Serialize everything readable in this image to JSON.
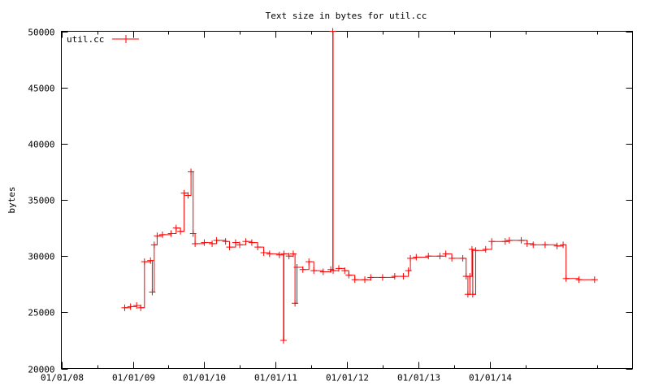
{
  "chart_data": {
    "type": "line",
    "title": "Text size in bytes for util.cc",
    "xlabel": "",
    "ylabel": "bytes",
    "ylim": [
      20000,
      50000
    ],
    "yticks": [
      20000,
      25000,
      30000,
      35000,
      40000,
      45000,
      50000
    ],
    "xlim": [
      "2008-01-01",
      "2015-12-31"
    ],
    "xticks": [
      {
        "value": "2008-01-01",
        "label": "01/01/08"
      },
      {
        "value": "2009-01-01",
        "label": "01/01/09"
      },
      {
        "value": "2010-01-01",
        "label": "01/01/10"
      },
      {
        "value": "2011-01-01",
        "label": "01/01/11"
      },
      {
        "value": "2012-01-01",
        "label": "01/01/12"
      },
      {
        "value": "2013-01-01",
        "label": "01/01/13"
      },
      {
        "value": "2014-01-01",
        "label": "01/01/14"
      }
    ],
    "legend_position": "top-left",
    "grid": false,
    "series": [
      {
        "name": "util.cc",
        "color": "#ff0000",
        "marker": "plus",
        "points": [
          [
            "2008-11-20",
            25400
          ],
          [
            "2008-12-20",
            25500
          ],
          [
            "2009-01-20",
            25600
          ],
          [
            "2009-02-10",
            25400
          ],
          [
            "2009-03-01",
            29500
          ],
          [
            "2009-04-01",
            29600
          ],
          [
            "2009-04-10",
            26800
          ],
          [
            "2009-04-20",
            31000
          ],
          [
            "2009-05-05",
            31800
          ],
          [
            "2009-06-01",
            31900
          ],
          [
            "2009-07-15",
            32000
          ],
          [
            "2009-08-10",
            32500
          ],
          [
            "2009-09-01",
            32200
          ],
          [
            "2009-09-20",
            35600
          ],
          [
            "2009-10-10",
            35400
          ],
          [
            "2009-10-25",
            37500
          ],
          [
            "2009-11-05",
            32000
          ],
          [
            "2009-11-15",
            31100
          ],
          [
            "2010-01-01",
            31200
          ],
          [
            "2010-02-10",
            31100
          ],
          [
            "2010-03-05",
            31400
          ],
          [
            "2010-04-20",
            31300
          ],
          [
            "2010-05-10",
            30800
          ],
          [
            "2010-06-10",
            31200
          ],
          [
            "2010-07-01",
            31000
          ],
          [
            "2010-08-01",
            31300
          ],
          [
            "2010-09-01",
            31200
          ],
          [
            "2010-10-01",
            30800
          ],
          [
            "2010-11-01",
            30300
          ],
          [
            "2010-12-01",
            30200
          ],
          [
            "2011-01-20",
            30100
          ],
          [
            "2011-02-10",
            22500
          ],
          [
            "2011-02-12",
            30200
          ],
          [
            "2011-03-10",
            30000
          ],
          [
            "2011-04-01",
            30200
          ],
          [
            "2011-04-10",
            25800
          ],
          [
            "2011-04-20",
            29000
          ],
          [
            "2011-05-20",
            28800
          ],
          [
            "2011-06-20",
            29500
          ],
          [
            "2011-07-15",
            28700
          ],
          [
            "2011-09-01",
            28600
          ],
          [
            "2011-10-10",
            28800
          ],
          [
            "2011-10-20",
            50000
          ],
          [
            "2011-10-22",
            28700
          ],
          [
            "2011-11-20",
            28900
          ],
          [
            "2011-12-20",
            28700
          ],
          [
            "2012-01-10",
            28300
          ],
          [
            "2012-02-10",
            27900
          ],
          [
            "2012-04-01",
            27900
          ],
          [
            "2012-05-01",
            28100
          ],
          [
            "2012-07-01",
            28100
          ],
          [
            "2012-09-01",
            28200
          ],
          [
            "2012-10-15",
            28200
          ],
          [
            "2012-11-10",
            28700
          ],
          [
            "2012-11-20",
            29800
          ],
          [
            "2012-12-20",
            29900
          ],
          [
            "2013-02-20",
            30000
          ],
          [
            "2013-04-20",
            30000
          ],
          [
            "2013-05-20",
            30200
          ],
          [
            "2013-06-20",
            29800
          ],
          [
            "2013-08-15",
            29800
          ],
          [
            "2013-09-01",
            28200
          ],
          [
            "2013-09-10",
            26600
          ],
          [
            "2013-09-20",
            28200
          ],
          [
            "2013-10-01",
            30600
          ],
          [
            "2013-10-05",
            26600
          ],
          [
            "2013-10-20",
            30500
          ],
          [
            "2013-12-10",
            30600
          ],
          [
            "2014-01-10",
            31300
          ],
          [
            "2014-03-20",
            31300
          ],
          [
            "2014-04-10",
            31400
          ],
          [
            "2014-06-10",
            31400
          ],
          [
            "2014-07-10",
            31100
          ],
          [
            "2014-08-10",
            31000
          ],
          [
            "2014-10-10",
            31000
          ],
          [
            "2014-12-10",
            30900
          ],
          [
            "2015-01-10",
            31000
          ],
          [
            "2015-01-25",
            28000
          ],
          [
            "2015-04-01",
            27900
          ],
          [
            "2015-06-20",
            27900
          ]
        ]
      }
    ]
  }
}
